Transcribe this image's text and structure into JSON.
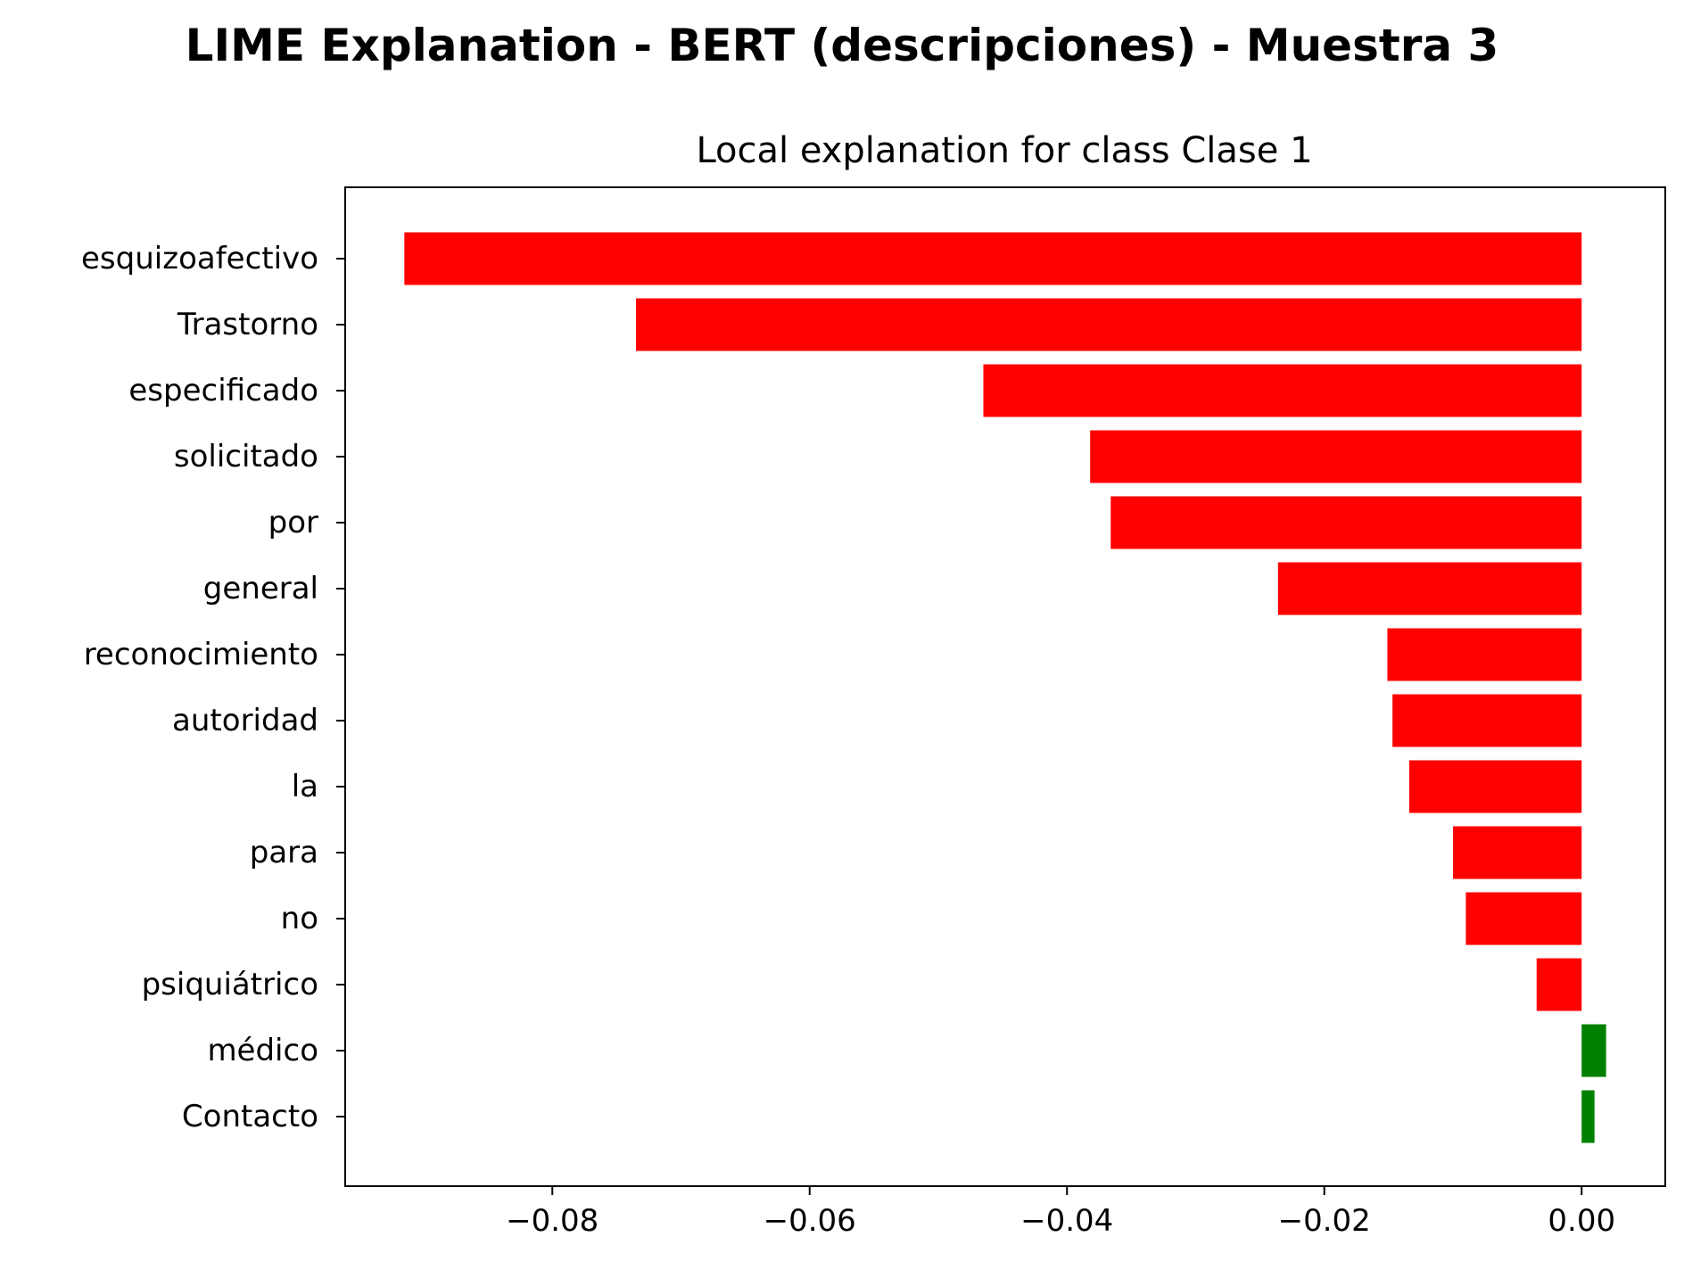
{
  "suptitle": "LIME Explanation - BERT (descripciones) - Muestra 3",
  "chart_data": {
    "type": "bar",
    "orientation": "horizontal",
    "title": "Local explanation for class Clase 1",
    "xlabel": "",
    "ylabel": "",
    "categories": [
      "esquizoafectivo",
      "Trastorno",
      "especificado",
      "solicitado",
      "por",
      "general",
      "reconocimiento",
      "autoridad",
      "la",
      "para",
      "no",
      "psiquiátrico",
      "médico",
      "Contacto"
    ],
    "values": [
      -0.0915,
      -0.0735,
      -0.0465,
      -0.0382,
      -0.0366,
      -0.0236,
      -0.0151,
      -0.0147,
      -0.0134,
      -0.01,
      -0.009,
      -0.0035,
      0.0019,
      0.001
    ],
    "xlim": [
      -0.0961,
      0.0065
    ],
    "xticks": [
      -0.08,
      -0.06,
      -0.04,
      -0.02,
      0.0
    ],
    "xtick_labels": [
      "−0.08",
      "−0.06",
      "−0.04",
      "−0.02",
      "0.00"
    ],
    "grid": false,
    "colors": {
      "negative": "#ff0000",
      "positive": "#008000"
    }
  }
}
